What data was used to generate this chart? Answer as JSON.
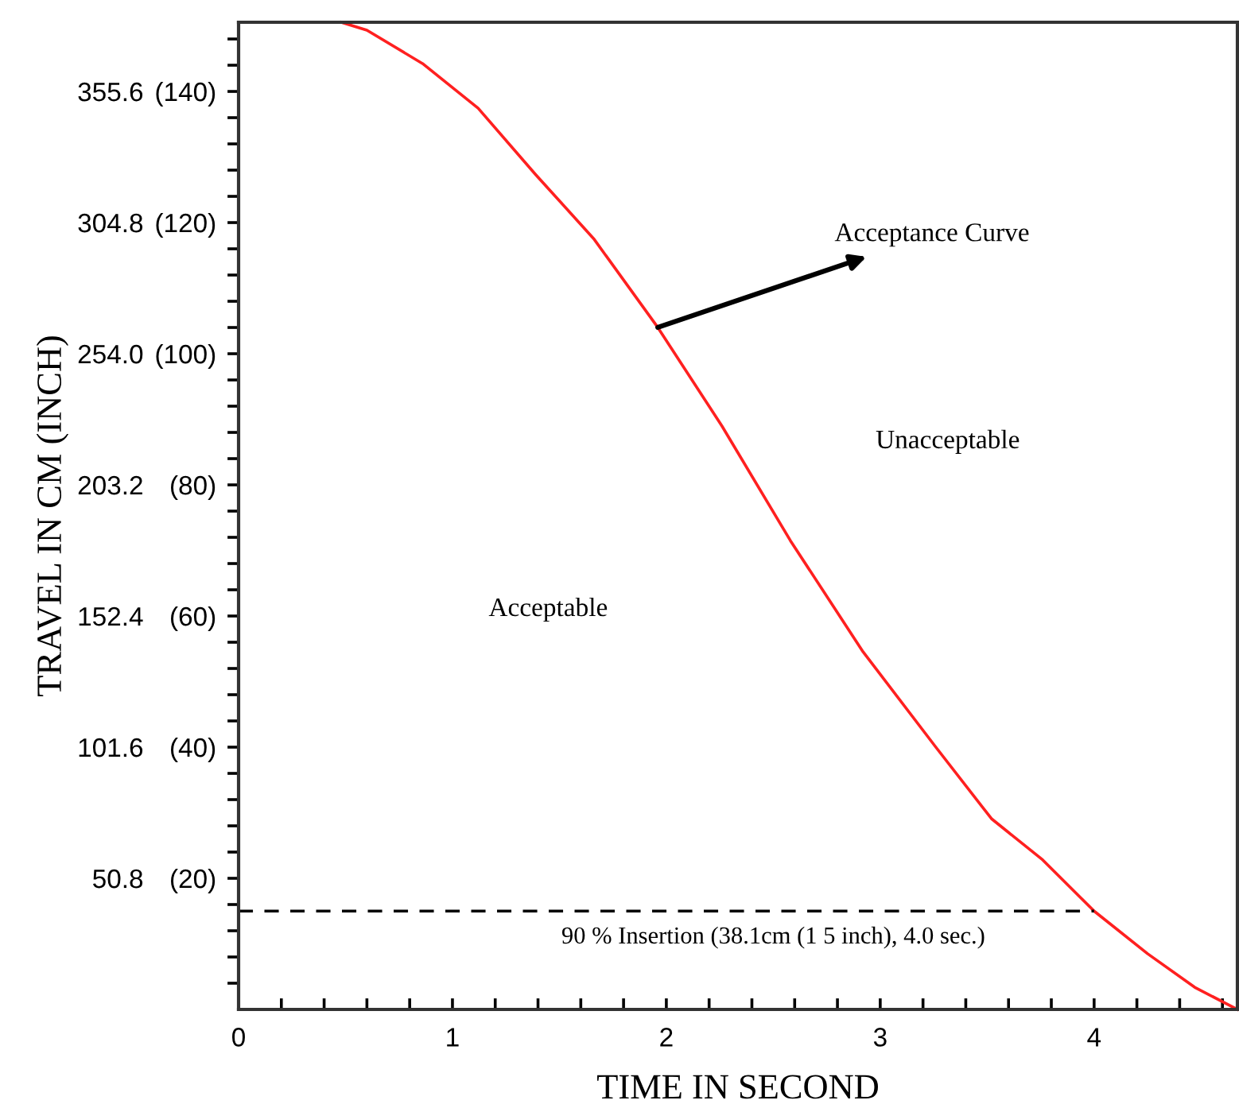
{
  "chart_data": {
    "type": "line",
    "xlabel": "TIME IN SECOND",
    "ylabel": "TRAVEL IN CM (INCH)",
    "series": [
      {
        "color": "#ff2020",
        "line_style": "solid",
        "x": [
          0.48,
          0.6,
          0.86,
          1.12,
          1.39,
          1.66,
          1.96,
          2.26,
          2.58,
          2.92,
          3.26,
          3.52,
          3.76,
          4.0,
          4.25,
          4.47,
          4.67
        ],
        "values": [
          382.4,
          379.3,
          366.4,
          349.1,
          323.3,
          298.6,
          264.2,
          226,
          181.6,
          138.5,
          101.6,
          73.9,
          57.9,
          38.1,
          21.6,
          8.6,
          0
        ]
      },
      {
        "color": "#000000",
        "line_style": "dashed",
        "x": [
          0,
          4.0
        ],
        "values": [
          38.1,
          38.1
        ]
      }
    ],
    "annotations": [
      {
        "text": "Acceptance Curve",
        "x": 1.96,
        "y": 264.2
      },
      "Unacceptable",
      "Acceptable",
      {
        "text": "90 % Insertion (38.1cm (1 5 inch), 4.0 sec.)",
        "x": 2.5,
        "y": 38.1
      }
    ],
    "xlim": [
      0,
      4.67
    ],
    "ylim": [
      0,
      382.4
    ],
    "xticks": [
      0,
      {
        "value": 0.2,
        "label": null
      },
      {
        "value": 0.4,
        "label": null
      },
      {
        "value": 0.6,
        "label": null
      },
      {
        "value": 0.8,
        "label": null
      },
      1,
      {
        "value": 1.2,
        "label": null
      },
      {
        "value": 1.4,
        "label": null
      },
      {
        "value": 1.6,
        "label": null
      },
      {
        "value": 1.8,
        "label": null
      },
      2,
      {
        "value": 2.2,
        "label": null
      },
      {
        "value": 2.4,
        "label": null
      },
      {
        "value": 2.6,
        "label": null
      },
      {
        "value": 2.8,
        "label": null
      },
      3,
      {
        "value": 3.2,
        "label": null
      },
      {
        "value": 3.4,
        "label": null
      },
      {
        "value": 3.6,
        "label": null
      },
      {
        "value": 3.8,
        "label": null
      },
      4,
      {
        "value": 4.2,
        "label": null
      },
      {
        "value": 4.4,
        "label": null
      },
      {
        "value": 4.6,
        "label": null
      }
    ],
    "yticks": [
      {
        "value": 10.16,
        "label": null
      },
      {
        "value": 20.32,
        "label": null
      },
      {
        "value": 30.48,
        "label": null
      },
      {
        "value": 40.64,
        "label": null
      },
      {
        "value": 50.8,
        "label": "50.8"
      },
      {
        "value": 60.96,
        "label": null
      },
      {
        "value": 71.12,
        "label": null
      },
      {
        "value": 81.28,
        "label": null
      },
      {
        "value": 91.44,
        "label": null
      },
      {
        "value": 101.6,
        "label": "101.6"
      },
      {
        "value": 111.76,
        "label": null
      },
      {
        "value": 121.92,
        "label": null
      },
      {
        "value": 132.08,
        "label": null
      },
      {
        "value": 142.24,
        "label": null
      },
      {
        "value": 152.4,
        "label": "152.4"
      },
      {
        "value": 162.56,
        "label": null
      },
      {
        "value": 172.72,
        "label": null
      },
      {
        "value": 182.88,
        "label": null
      },
      {
        "value": 193.04,
        "label": null
      },
      {
        "value": 203.2,
        "label": "203.2"
      },
      {
        "value": 213.36,
        "label": null
      },
      {
        "value": 223.52,
        "label": null
      },
      {
        "value": 233.68,
        "label": null
      },
      {
        "value": 243.84,
        "label": null
      },
      {
        "value": 254.0,
        "label": "254.0"
      },
      {
        "value": 264.16,
        "label": null
      },
      {
        "value": 274.32,
        "label": null
      },
      {
        "value": 284.48,
        "label": null
      },
      {
        "value": 294.64,
        "label": null
      },
      {
        "value": 304.8,
        "label": "304.8"
      },
      {
        "value": 314.96,
        "label": null
      },
      {
        "value": 325.12,
        "label": null
      },
      {
        "value": 335.28,
        "label": null
      },
      {
        "value": 345.44,
        "label": null
      },
      {
        "value": 355.6,
        "label": "355.6"
      },
      {
        "value": 365.76,
        "label": null
      },
      {
        "value": 375.92,
        "label": null
      }
    ],
    "y2lim": [
      0,
      150.55
    ],
    "y2ticks": [
      {
        "value": 20,
        "label": "(20)"
      },
      {
        "value": 40,
        "label": "(40)"
      },
      {
        "value": 60,
        "label": "(60)"
      },
      {
        "value": 80,
        "label": "(80)"
      },
      {
        "value": 100,
        "label": "(100)"
      },
      {
        "value": 120,
        "label": "(120)"
      },
      {
        "value": 140,
        "label": "(140)"
      }
    ],
    "grid": false,
    "legend": false,
    "marker": "none"
  }
}
